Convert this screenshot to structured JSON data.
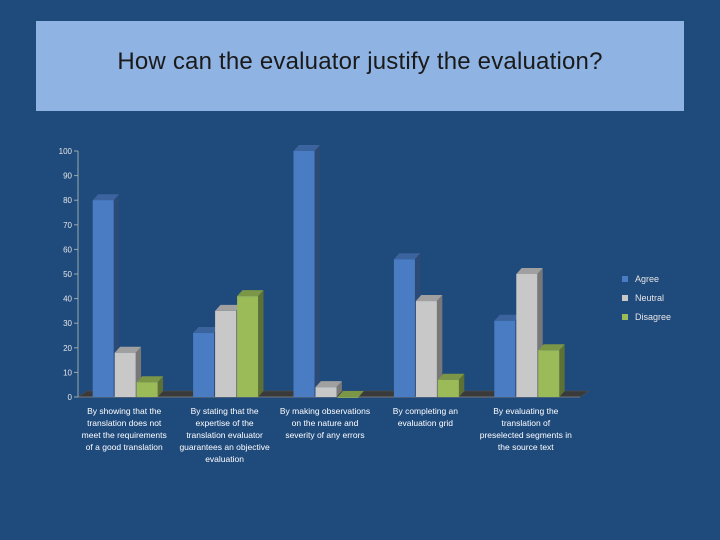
{
  "slide": {
    "title": "How can the evaluator justify the evaluation?"
  },
  "colors": {
    "Agree": "#4a7cc4",
    "Neutral": "#c8c8c8",
    "Disagree": "#9bbb59"
  },
  "chart_data": {
    "type": "bar",
    "title": "",
    "xlabel": "",
    "ylabel": "",
    "ylim": [
      0,
      100
    ],
    "yticks": [
      0,
      10,
      20,
      30,
      40,
      50,
      60,
      70,
      80,
      90,
      100
    ],
    "grid": false,
    "legend_position": "right",
    "categories": [
      [
        "By showing that the",
        "translation does not",
        "meet the requirements",
        "of a good translation"
      ],
      [
        "By stating that the",
        "expertise of the",
        "translation evaluator",
        "guarantees an objective",
        "evaluation"
      ],
      [
        "By making observations",
        "on the nature and",
        "severity of any errors"
      ],
      [
        "By completing an",
        "evaluation grid"
      ],
      [
        "By evaluating the",
        "translation of",
        "preselected segments in",
        "the source text"
      ]
    ],
    "series": [
      {
        "name": "Agree",
        "values": [
          80,
          26,
          100,
          56,
          31
        ]
      },
      {
        "name": "Neutral",
        "values": [
          18,
          35,
          4,
          39,
          50
        ]
      },
      {
        "name": "Disagree",
        "values": [
          6,
          41,
          0,
          7,
          19
        ]
      }
    ]
  }
}
